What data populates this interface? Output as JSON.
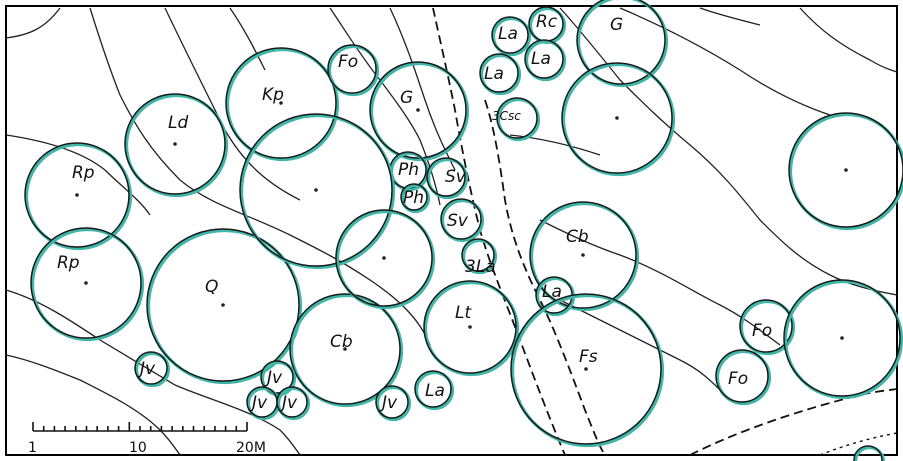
{
  "scale": {
    "labels": [
      "1",
      "10",
      "20M"
    ]
  },
  "trees": [
    {
      "code": "Rp",
      "size": "large"
    },
    {
      "code": "Rp",
      "size": "large"
    },
    {
      "code": "Ld",
      "size": "large"
    },
    {
      "code": "Kp",
      "size": "large"
    },
    {
      "code": "Fo",
      "size": "small"
    },
    {
      "code": "G",
      "size": "large"
    },
    {
      "code": "La",
      "size": "small"
    },
    {
      "code": "Rc",
      "size": "small"
    },
    {
      "code": "La",
      "size": "small"
    },
    {
      "code": "La",
      "size": "small"
    },
    {
      "code": "G",
      "size": "large"
    },
    {
      "code": "3Csc",
      "size": "small"
    },
    {
      "code": "Ph",
      "size": "small"
    },
    {
      "code": "Sv",
      "size": "small"
    },
    {
      "code": "Ph",
      "size": "small"
    },
    {
      "code": "Sv",
      "size": "small"
    },
    {
      "code": "3La",
      "size": "small"
    },
    {
      "code": "Q",
      "size": "large"
    },
    {
      "code": "Cb",
      "size": "large"
    },
    {
      "code": "Lt",
      "size": "large"
    },
    {
      "code": "Cb",
      "size": "large"
    },
    {
      "code": "La",
      "size": "small"
    },
    {
      "code": "Fs",
      "size": "large"
    },
    {
      "code": "Fo",
      "size": "small"
    },
    {
      "code": "Fo",
      "size": "small"
    },
    {
      "code": "Jv",
      "size": "small"
    },
    {
      "code": "Jv",
      "size": "small"
    },
    {
      "code": "Jv",
      "size": "small"
    },
    {
      "code": "Jv",
      "size": "small"
    },
    {
      "code": "Jv",
      "size": "small"
    },
    {
      "code": "La",
      "size": "small"
    }
  ],
  "colors": {
    "canopy_highlight": "#3fb6a8",
    "ink": "#1a1a1a"
  }
}
